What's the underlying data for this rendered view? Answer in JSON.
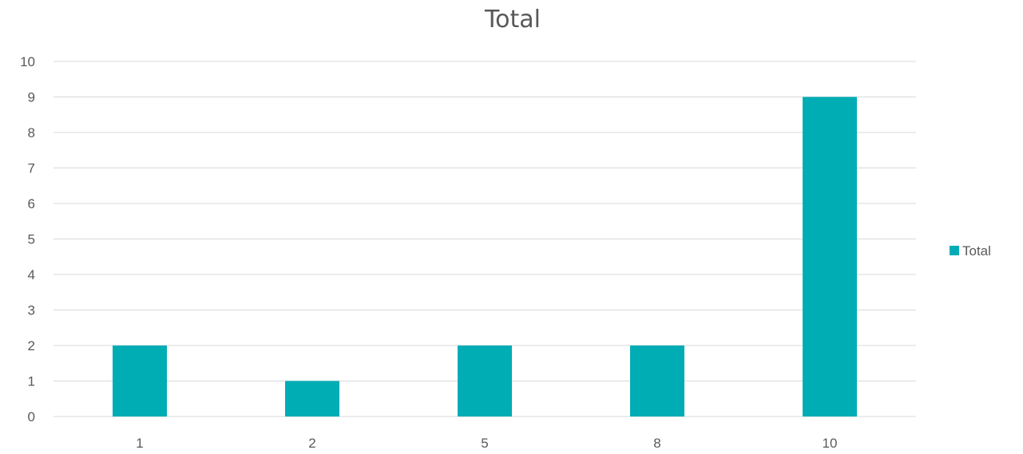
{
  "chart_data": {
    "type": "bar",
    "title": "Total",
    "categories": [
      "1",
      "2",
      "5",
      "8",
      "10"
    ],
    "series": [
      {
        "name": "Total",
        "values": [
          2,
          1,
          2,
          2,
          9
        ],
        "color": "#00adb5"
      }
    ],
    "ylim": [
      0,
      10
    ],
    "yticks": [
      0,
      1,
      2,
      3,
      4,
      5,
      6,
      7,
      8,
      9,
      10
    ],
    "xlabel": "",
    "ylabel": "",
    "grid": true,
    "legend_position": "right",
    "colors": {
      "text": "#595959",
      "grid": "#d9d9d9"
    }
  }
}
